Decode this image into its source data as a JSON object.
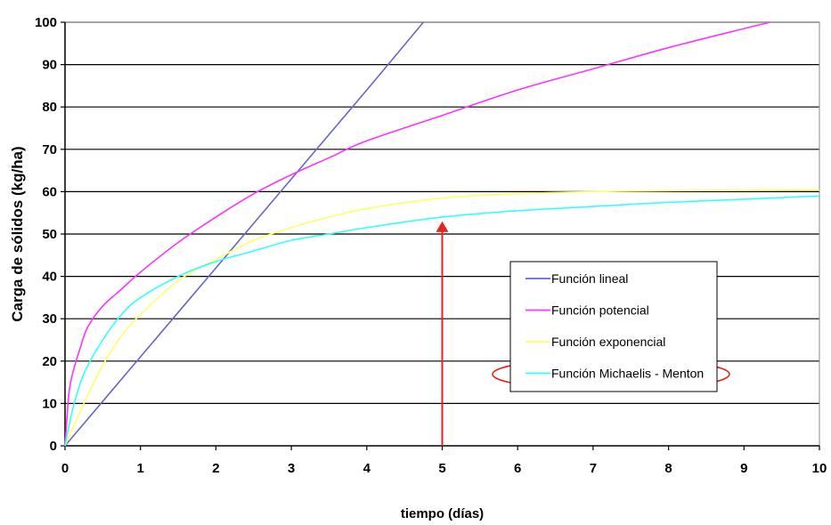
{
  "chart_data": {
    "type": "line",
    "xlabel": "tiempo (días)",
    "ylabel": "Carga de sólidos (kg/ha)",
    "xlim": [
      0,
      10
    ],
    "ylim": [
      0,
      100
    ],
    "x_ticks": [
      "0",
      "1",
      "2",
      "3",
      "4",
      "5",
      "6",
      "7",
      "8",
      "9",
      "10"
    ],
    "y_ticks": [
      "0",
      "10",
      "20",
      "30",
      "40",
      "50",
      "60",
      "70",
      "80",
      "90",
      "100"
    ],
    "grid": "horizontal",
    "legend_position": "right",
    "series": [
      {
        "name": "Función lineal",
        "color": "#6666cc",
        "x": [
          0,
          1,
          2,
          3,
          4,
          4.75
        ],
        "y": [
          0,
          21,
          42,
          63,
          84,
          100
        ]
      },
      {
        "name": "Función potencial",
        "color": "#ff33ff",
        "x": [
          0,
          0.05,
          0.1,
          0.2,
          0.3,
          0.5,
          0.75,
          1,
          1.5,
          2,
          2.5,
          3,
          3.5,
          4,
          5,
          6,
          7,
          8,
          9,
          9.35
        ],
        "y": [
          0,
          12,
          17,
          23,
          28,
          33,
          37,
          41,
          48,
          54,
          59.5,
          64,
          68,
          72,
          78,
          84,
          89,
          94,
          98.5,
          100
        ]
      },
      {
        "name": "Función exponencial",
        "color": "#ffff66",
        "x": [
          0,
          0.25,
          0.5,
          0.75,
          1,
          1.5,
          2,
          2.5,
          3,
          3.5,
          4,
          5,
          6,
          7,
          8,
          9,
          10
        ],
        "y": [
          0,
          10,
          19,
          26,
          31,
          39,
          44,
          48.5,
          51.5,
          54,
          56,
          58.5,
          59.5,
          60,
          60.2,
          60.3,
          60.4
        ]
      },
      {
        "name": "Función Michaelis - Menton",
        "color": "#33ffff",
        "x": [
          0,
          0.1,
          0.25,
          0.5,
          0.75,
          1,
          1.5,
          2,
          2.5,
          3,
          3.5,
          4,
          5,
          6,
          7,
          8,
          9,
          10
        ],
        "y": [
          0,
          8.5,
          17,
          25,
          31,
          35,
          40,
          43.5,
          46,
          48.5,
          50,
          51.5,
          54,
          55.5,
          56.5,
          57.5,
          58.2,
          59
        ]
      }
    ],
    "annotations": [
      {
        "type": "arrow",
        "x": 5,
        "y_from": 0,
        "y_to": 53,
        "color": "#e8221e"
      },
      {
        "type": "ellipse",
        "target": "Función Michaelis - Menton",
        "color": "#e8221e"
      }
    ]
  }
}
